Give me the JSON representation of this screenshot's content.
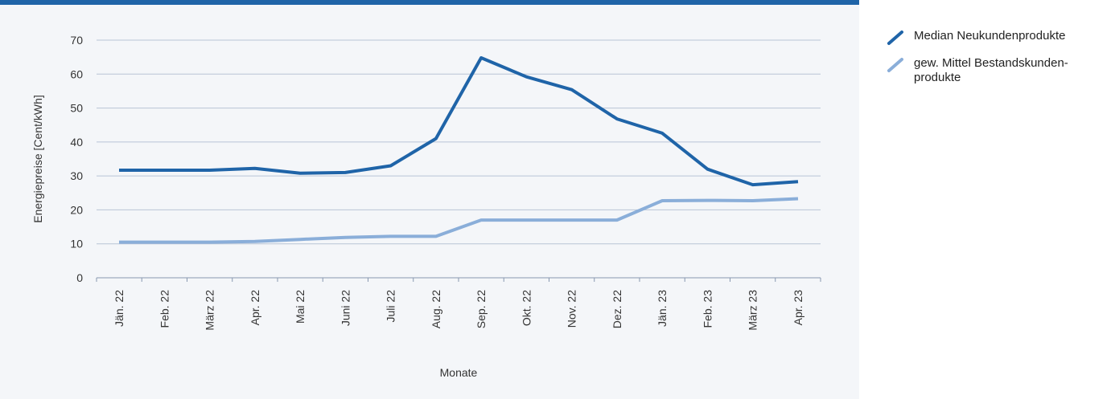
{
  "colors": {
    "panel_bg": "#f4f6f9",
    "top_bar": "#1f64a8",
    "grid": "#b8c4d6",
    "axis": "#8898b0"
  },
  "chart_data": {
    "type": "line",
    "title": "",
    "xlabel": "Monate",
    "ylabel": "Energiepreise [Cent/kWh]",
    "ylim": [
      0,
      70
    ],
    "yticks": [
      0,
      10,
      20,
      30,
      40,
      50,
      60,
      70
    ],
    "grid": true,
    "legend_position": "right",
    "categories": [
      "Jän. 22",
      "Feb. 22",
      "März 22",
      "Apr. 22",
      "Mai 22",
      "Juni 22",
      "Juli 22",
      "Aug. 22",
      "Sep. 22",
      "Okt. 22",
      "Nov. 22",
      "Dez. 22",
      "Jän. 23",
      "Feb. 23",
      "März 23",
      "Apr. 23"
    ],
    "series": [
      {
        "name": "Median Neukundenprodukte",
        "color": "#1f64a8",
        "values": [
          31.7,
          31.7,
          31.7,
          32.2,
          30.8,
          31.0,
          33.0,
          41.0,
          64.8,
          59.2,
          55.4,
          46.8,
          42.6,
          32.0,
          27.4,
          28.3
        ]
      },
      {
        "name": "gew. Mittel Bestandskunden-\nprodukte",
        "color": "#8aaed9",
        "values": [
          10.5,
          10.5,
          10.5,
          10.7,
          11.3,
          11.9,
          12.2,
          12.2,
          17.0,
          17.0,
          17.0,
          17.0,
          22.7,
          22.8,
          22.7,
          23.3
        ]
      }
    ]
  }
}
